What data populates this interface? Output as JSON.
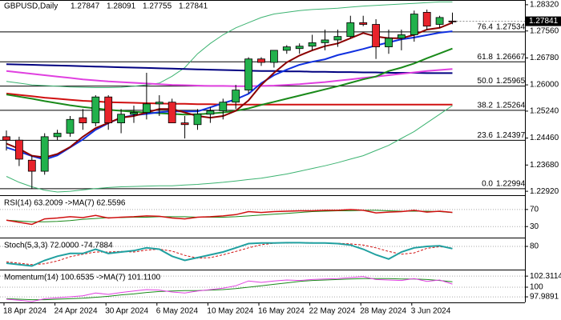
{
  "chart_data": [
    {
      "type": "candlestick",
      "title": "GBPUSD,Daily",
      "up_color": "#22b14c",
      "down_color": "#e8232b",
      "categories": [
        "18 Apr 2024",
        null,
        null,
        null,
        "24 Apr 2024",
        null,
        null,
        null,
        "30 Apr 2024",
        null,
        null,
        null,
        "6 May 2024",
        null,
        null,
        null,
        "10 May 2024",
        null,
        null,
        null,
        "16 May 2024",
        null,
        null,
        null,
        "22 May 2024",
        null,
        null,
        null,
        "28 May 2024",
        null,
        null,
        null,
        "3 Jun 2024",
        null,
        null,
        null
      ],
      "open": [
        1.245,
        1.244,
        1.2382,
        1.235,
        1.245,
        1.246,
        1.2505,
        1.249,
        1.2565,
        1.249,
        1.2515,
        1.252,
        1.2545,
        1.255,
        1.249,
        1.2485,
        1.2515,
        1.2525,
        1.255,
        1.2585,
        1.2675,
        1.2665,
        1.27,
        1.2705,
        1.2712,
        1.2722,
        1.273,
        1.274,
        1.278,
        1.2775,
        1.271,
        1.2735,
        1.2745,
        1.281,
        1.2775,
        1.27847
      ],
      "high": [
        1.2468,
        1.245,
        1.2395,
        1.246,
        1.247,
        1.251,
        1.253,
        1.257,
        1.257,
        1.253,
        1.254,
        1.2635,
        1.257,
        1.256,
        1.251,
        1.253,
        1.2535,
        1.256,
        1.26,
        1.268,
        1.268,
        1.27,
        1.2715,
        1.272,
        1.2745,
        1.276,
        1.276,
        1.28,
        1.28,
        1.279,
        1.276,
        1.276,
        1.2815,
        1.2818,
        1.28,
        1.28091
      ],
      "low": [
        1.241,
        1.2365,
        1.2299,
        1.234,
        1.244,
        1.245,
        1.247,
        1.248,
        1.247,
        1.246,
        1.249,
        1.25,
        1.251,
        1.249,
        1.2445,
        1.247,
        1.249,
        1.25,
        1.253,
        1.2575,
        1.2655,
        1.265,
        1.269,
        1.269,
        1.27,
        1.27,
        1.271,
        1.2735,
        1.277,
        1.2675,
        1.269,
        1.27,
        1.2725,
        1.276,
        1.2765,
        1.27755
      ],
      "close": [
        1.244,
        1.2385,
        1.235,
        1.245,
        1.246,
        1.25,
        1.249,
        1.2565,
        1.249,
        1.2515,
        1.252,
        1.2545,
        1.255,
        1.249,
        1.2485,
        1.2515,
        1.2525,
        1.255,
        1.2585,
        1.2675,
        1.2665,
        1.27,
        1.271,
        1.2712,
        1.2722,
        1.273,
        1.274,
        1.278,
        1.2775,
        1.271,
        1.2735,
        1.2745,
        1.2805,
        1.277,
        1.2795,
        1.27841
      ],
      "series": [
        {
          "color": "#3cb371",
          "line_width": 1,
          "values": [
            1.261,
            1.2605,
            1.26,
            1.2598,
            1.2596,
            1.2594,
            1.2593,
            1.2592,
            1.2592,
            1.2593,
            1.2596,
            1.26,
            1.2605,
            1.2625,
            1.265,
            1.269,
            1.272,
            1.2745,
            1.2765,
            1.278,
            1.2795,
            1.2805,
            1.281,
            1.2815,
            1.2818,
            1.282,
            1.2822,
            1.2825,
            1.2828,
            1.283,
            1.2832,
            1.2834,
            1.2836,
            1.2838,
            1.284,
            1.284
          ]
        },
        {
          "color": "#3cb371",
          "line_width": 1,
          "values": [
            1.2335,
            1.2318,
            1.2305,
            1.2295,
            1.229,
            1.2292,
            1.2296,
            1.23,
            1.2303,
            1.2305,
            1.2306,
            1.2307,
            1.2308,
            1.2308,
            1.231,
            1.2312,
            1.2315,
            1.2318,
            1.2322,
            1.2326,
            1.233,
            1.2336,
            1.2342,
            1.235,
            1.2358,
            1.2366,
            1.2375,
            1.2385,
            1.2395,
            1.241,
            1.2425,
            1.2445,
            1.2465,
            1.249,
            1.2515,
            1.254
          ]
        },
        {
          "color": "#000080",
          "line_width": 2,
          "values": [
            1.266,
            1.2659,
            1.2658,
            1.2657,
            1.2656,
            1.2655,
            1.2654,
            1.2653,
            1.2652,
            1.2651,
            1.265,
            1.2649,
            1.2648,
            1.2647,
            1.2646,
            1.2645,
            1.2644,
            1.2643,
            1.2642,
            1.2641,
            1.264,
            1.264,
            1.2639,
            1.2639,
            1.2638,
            1.2638,
            1.2637,
            1.2637,
            1.2636,
            1.2636,
            1.2635,
            1.2635,
            1.2635,
            1.2634,
            1.2634,
            1.2634
          ]
        },
        {
          "color": "#d01010",
          "line_width": 2,
          "values": [
            1.2575,
            1.2571,
            1.2567,
            1.2563,
            1.256,
            1.2557,
            1.2554,
            1.2552,
            1.255,
            1.2549,
            1.2548,
            1.2547,
            1.2546,
            1.2545,
            1.2545,
            1.2544,
            1.2544,
            1.2543,
            1.2543,
            1.2543,
            1.2543,
            1.2543,
            1.2543,
            1.2543,
            1.2543,
            1.2543,
            1.2543,
            1.2543,
            1.2543,
            1.2543,
            1.2543,
            1.2543,
            1.2543,
            1.2543,
            1.2543,
            1.2543
          ]
        },
        {
          "color": "#e040e0",
          "line_width": 2,
          "values": [
            1.264,
            1.2636,
            1.2632,
            1.2628,
            1.2624,
            1.262,
            1.2616,
            1.2613,
            1.261,
            1.2608,
            1.2606,
            1.2604,
            1.2602,
            1.26,
            1.2599,
            1.2598,
            1.2597,
            1.2597,
            1.2596,
            1.2596,
            1.2597,
            1.2598,
            1.26,
            1.2602,
            1.2605,
            1.2608,
            1.2612,
            1.2616,
            1.262,
            1.2624,
            1.2628,
            1.2632,
            1.2636,
            1.264,
            1.2643,
            1.2646
          ]
        },
        {
          "color": "#1a8a1a",
          "line_width": 2,
          "values": [
            1.2572,
            1.2566,
            1.256,
            1.2553,
            1.2547,
            1.2541,
            1.2536,
            1.2532,
            1.2528,
            1.2525,
            1.2522,
            1.252,
            1.2518,
            1.2516,
            1.2514,
            1.2515,
            1.2517,
            1.252,
            1.2525,
            1.2532,
            1.2542,
            1.2551,
            1.256,
            1.2569,
            1.2578,
            1.2587,
            1.2596,
            1.2606,
            1.2616,
            1.2624,
            1.264,
            1.265,
            1.2662,
            1.2677,
            1.2691,
            1.2705
          ]
        },
        {
          "color": "#1030e0",
          "line_width": 2,
          "values": [
            1.2419,
            1.2407,
            1.2394,
            1.2384,
            1.2396,
            1.2419,
            1.2442,
            1.247,
            1.2489,
            1.2505,
            1.2512,
            1.2516,
            1.2521,
            1.2523,
            1.2523,
            1.2523,
            1.2535,
            1.2547,
            1.2558,
            1.2574,
            1.2605,
            1.2628,
            1.2644,
            1.2658,
            1.2667,
            1.2674,
            1.2686,
            1.2695,
            1.2704,
            1.2714,
            1.2723,
            1.2732,
            1.2737,
            1.2744,
            1.2751,
            1.2755
          ]
        },
        {
          "color": "#8b0000",
          "line_width": 2,
          "values": [
            1.243,
            1.2415,
            1.2395,
            1.239,
            1.24,
            1.242,
            1.245,
            1.2475,
            1.249,
            1.2505,
            1.251,
            1.252,
            1.253,
            1.253,
            1.252,
            1.251,
            1.2505,
            1.251,
            1.2525,
            1.2555,
            1.26,
            1.2635,
            1.2665,
            1.2685,
            1.27,
            1.2712,
            1.272,
            1.2735,
            1.275,
            1.274,
            1.2735,
            1.2735,
            1.2745,
            1.276,
            1.2765,
            1.278
          ]
        }
      ],
      "fib_levels": [
        {
          "level": "76.4",
          "price": 1.27534
        },
        {
          "level": "61.8",
          "price": 1.26667
        },
        {
          "level": "50.0",
          "price": 1.25965
        },
        {
          "level": "38.2",
          "price": 1.25264
        },
        {
          "level": "23.6",
          "price": 1.24397
        },
        {
          "level": "0.0",
          "price": 1.22994
        }
      ],
      "ylim": [
        1.2283,
        1.2841
      ],
      "yticks": [
        {
          "value": 1.2832,
          "label": "1.28320"
        },
        {
          "value": 1.2756,
          "label": "1.27560"
        },
        {
          "value": 1.2678,
          "label": "1.26780"
        },
        {
          "value": 1.26,
          "label": "1.26000"
        },
        {
          "value": 1.2524,
          "label": "1.25240"
        },
        {
          "value": 1.2446,
          "label": "1.24460"
        },
        {
          "value": 1.2368,
          "label": "1.23680"
        },
        {
          "value": 1.2292,
          "label": "1.22920"
        }
      ]
    },
    {
      "type": "line",
      "title": "RSI(14) 63.2009 ->MA(7) 62.5596",
      "ylim": [
        6,
        96
      ],
      "yticks": [
        70,
        30
      ],
      "series": [
        {
          "color": "#1a8a1a",
          "line_width": 1,
          "values": [
            45,
            43,
            41,
            41,
            42,
            44,
            47,
            49,
            51,
            51,
            52,
            52,
            53,
            53,
            53,
            52,
            52,
            52,
            53,
            55,
            57,
            59,
            61,
            63,
            65,
            66,
            67,
            67,
            68,
            68,
            67,
            66,
            66,
            66,
            65,
            62.5596
          ]
        },
        {
          "color": "#d01010",
          "line_width": 1.5,
          "values": [
            45,
            40,
            35,
            48,
            50,
            53,
            51,
            56,
            50,
            52,
            53,
            55,
            54,
            50,
            48,
            52,
            53,
            55,
            58,
            65,
            63,
            65,
            66,
            67,
            67,
            68,
            68,
            70,
            68,
            62,
            64,
            65,
            68,
            64,
            66,
            63.2009
          ]
        }
      ]
    },
    {
      "type": "line",
      "title": "Stoch(5,3,3) 72.0000 -74.7884",
      "ylim": [
        0,
        100
      ],
      "yticks": [
        80
      ],
      "series": [
        {
          "color": "#d01010",
          "line_width": 1,
          "dash": true,
          "values": [
            25,
            20,
            15,
            18,
            28,
            43,
            52,
            60,
            60,
            62,
            60,
            67,
            70,
            63,
            48,
            38,
            40,
            50,
            62,
            75,
            86,
            91,
            92,
            93,
            93,
            92,
            91,
            89,
            85,
            75,
            62,
            52,
            57,
            73,
            79,
            74.7884
          ]
        },
        {
          "color": "#20a0a0",
          "line_width": 2,
          "values": [
            20,
            15,
            10,
            30,
            45,
            55,
            55,
            70,
            55,
            60,
            65,
            75,
            70,
            45,
            30,
            40,
            50,
            60,
            75,
            90,
            92,
            92,
            93,
            93,
            92,
            92,
            90,
            85,
            70,
            50,
            35,
            60,
            75,
            80,
            82,
            72
          ]
        }
      ]
    },
    {
      "type": "line",
      "title": "Momentum(14) 100.6535 ->MA(7) 101.1100",
      "ylim": [
        97.0,
        103.0
      ],
      "yticks": [
        102.3114,
        100,
        97.9891
      ],
      "series": [
        {
          "color": "#1a8a1a",
          "line_width": 1,
          "values": [
            97.6,
            97.5,
            97.4,
            97.4,
            97.5,
            97.6,
            97.7,
            97.9,
            98.1,
            98.4,
            98.6,
            98.9,
            99.1,
            99.2,
            99.3,
            99.3,
            99.4,
            99.5,
            99.7,
            100.0,
            100.3,
            100.6,
            100.9,
            101.2,
            101.4,
            101.5,
            101.6,
            101.7,
            101.8,
            101.8,
            101.8,
            101.7,
            101.7,
            101.6,
            101.4,
            101.11
          ]
        },
        {
          "color": "#e040e0",
          "line_width": 1,
          "values": [
            97.5,
            97.3,
            97.0,
            97.6,
            97.8,
            98.0,
            98.2,
            98.8,
            98.5,
            98.9,
            99.2,
            99.5,
            99.4,
            99.0,
            98.8,
            99.2,
            99.5,
            99.8,
            100.3,
            101.3,
            101.0,
            101.3,
            101.5,
            101.4,
            101.6,
            101.7,
            101.8,
            102.0,
            102.2,
            101.6,
            101.5,
            101.4,
            101.8,
            101.2,
            101.5,
            100.6535
          ]
        }
      ]
    }
  ]
}
